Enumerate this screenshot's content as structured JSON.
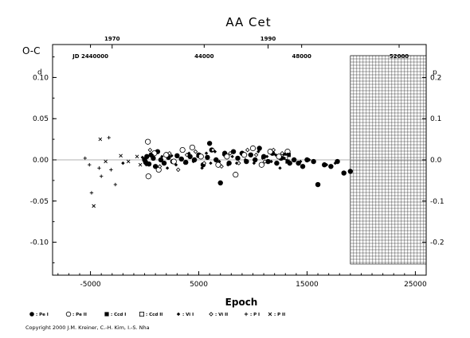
{
  "chart_data": {
    "type": "scatter",
    "title": "AA  Cet",
    "ylabel": "O-C",
    "xlabel": "Epoch",
    "xlim": [
      -8500,
      26000
    ],
    "ylim": [
      -0.14,
      0.14
    ],
    "x_ticks": [
      "-5000",
      "5000",
      "15000",
      "25000"
    ],
    "x_tick_values": [
      -5000,
      5000,
      15000,
      25000
    ],
    "y_ticks_left": [
      "0.10",
      "0.05",
      "0.00",
      "-0.05",
      "-0.10"
    ],
    "y_ticks_left_values": [
      0.1,
      0.05,
      0.0,
      -0.05,
      -0.1
    ],
    "y_ticks_right": [
      "0.2",
      "0.1",
      "0.0",
      "-0.1",
      "-0.2"
    ],
    "y_ticks_right_values": [
      0.2,
      0.1,
      0.0,
      -0.1,
      -0.2
    ],
    "y_right_scale": 0.5,
    "unit_left": "d",
    "unit_right": "p",
    "top_year_ticks": [
      {
        "label": "1970",
        "epoch": -3000
      },
      {
        "label": "1990",
        "epoch": 11400
      }
    ],
    "top_jd_ticks": [
      {
        "label": "JD 2440000",
        "epoch": -5000
      },
      {
        "label": "44000",
        "epoch": 5500
      },
      {
        "label": "48000",
        "epoch": 14500
      },
      {
        "label": "52000",
        "epoch": 23500
      }
    ],
    "grid_region": {
      "x_from": 19000,
      "x_to": 26000
    },
    "zero_line": true,
    "series": [
      {
        "name": ": Pe I",
        "marker": "filled-circle",
        "size": 3.2,
        "points": [
          [
            0,
            0.0
          ],
          [
            100,
            -0.003
          ],
          [
            200,
            0.004
          ],
          [
            400,
            -0.005
          ],
          [
            600,
            0.006
          ],
          [
            800,
            0.002
          ],
          [
            1000,
            -0.008
          ],
          [
            1200,
            0.01
          ],
          [
            1500,
            0.0
          ],
          [
            1800,
            -0.004
          ],
          [
            2200,
            0.003
          ],
          [
            2600,
            -0.002
          ],
          [
            3000,
            0.005
          ],
          [
            3400,
            0.001
          ],
          [
            3800,
            -0.003
          ],
          [
            4200,
            0.004
          ],
          [
            4600,
            0.0
          ],
          [
            5000,
            0.006
          ],
          [
            5400,
            -0.006
          ],
          [
            5800,
            0.003
          ],
          [
            6000,
            0.02
          ],
          [
            6200,
            0.012
          ],
          [
            6600,
            0.0
          ],
          [
            7000,
            -0.028
          ],
          [
            7400,
            0.008
          ],
          [
            7800,
            -0.004
          ],
          [
            8200,
            0.01
          ],
          [
            8600,
            0.002
          ],
          [
            9000,
            0.008
          ],
          [
            9400,
            -0.002
          ],
          [
            9800,
            0.006
          ],
          [
            10200,
            0.0
          ],
          [
            10600,
            0.014
          ],
          [
            11000,
            0.004
          ],
          [
            11400,
            -0.002
          ],
          [
            11800,
            0.008
          ],
          [
            12200,
            -0.004
          ],
          [
            12600,
            0.002
          ],
          [
            13000,
            0.006
          ],
          [
            13400,
            -0.004
          ],
          [
            13800,
            0.0
          ],
          [
            14200,
            -0.004
          ],
          [
            14600,
            -0.008
          ],
          [
            15000,
            0.0
          ],
          [
            15600,
            -0.002
          ],
          [
            16000,
            -0.03
          ],
          [
            16600,
            -0.006
          ],
          [
            17200,
            -0.008
          ],
          [
            17800,
            -0.002
          ],
          [
            18400,
            -0.016
          ],
          [
            19000,
            -0.014
          ]
        ]
      },
      {
        "name": ": Pe II",
        "marker": "open-circle",
        "size": 3.2,
        "points": [
          [
            300,
            0.022
          ],
          [
            350,
            -0.02
          ],
          [
            900,
            0.008
          ],
          [
            1300,
            -0.012
          ],
          [
            2000,
            0.006
          ],
          [
            2700,
            -0.002
          ],
          [
            3500,
            0.012
          ],
          [
            4400,
            0.015
          ],
          [
            5200,
            0.004
          ],
          [
            6800,
            -0.006
          ],
          [
            7600,
            0.004
          ],
          [
            8400,
            -0.018
          ],
          [
            9200,
            0.006
          ],
          [
            10000,
            0.014
          ],
          [
            10800,
            -0.006
          ],
          [
            11600,
            0.01
          ],
          [
            12400,
            0.004
          ],
          [
            13200,
            0.01
          ]
        ]
      },
      {
        "name": ": Ccd I",
        "marker": "filled-square",
        "size": 2.6,
        "points": [
          [
            13200,
            -0.002
          ],
          [
            13300,
            0.006
          ]
        ]
      },
      {
        "name": ": Ccd II",
        "marker": "open-square",
        "size": 2.6,
        "points": [
          [
            13000,
            0.003
          ]
        ]
      },
      {
        "name": ": Vi I",
        "marker": "filled-diamond",
        "size": 2.2,
        "points": [
          [
            -2000,
            -0.004
          ],
          [
            -200,
            0.003
          ],
          [
            150,
            -0.006
          ],
          [
            700,
            0.006
          ],
          [
            1100,
            -0.008
          ],
          [
            1600,
            0.004
          ],
          [
            2100,
            -0.01
          ],
          [
            2500,
            0.005
          ],
          [
            2900,
            -0.006
          ],
          [
            3300,
            0.002
          ],
          [
            3700,
            -0.004
          ],
          [
            4100,
            0.008
          ],
          [
            4500,
            -0.002
          ],
          [
            4900,
            0.004
          ],
          [
            5300,
            -0.01
          ],
          [
            5700,
            0.008
          ],
          [
            6100,
            -0.004
          ],
          [
            6500,
            0.01
          ],
          [
            6900,
            -0.002
          ],
          [
            7300,
            0.006
          ],
          [
            7700,
            -0.006
          ],
          [
            8100,
            0.004
          ],
          [
            8500,
            -0.004
          ],
          [
            8900,
            0.008
          ],
          [
            9300,
            0.0
          ],
          [
            9700,
            0.006
          ],
          [
            10100,
            -0.004
          ],
          [
            10500,
            0.01
          ],
          [
            10900,
            0.002
          ],
          [
            11300,
            0.004
          ],
          [
            11700,
            -0.002
          ],
          [
            12100,
            0.006
          ],
          [
            12500,
            -0.01
          ],
          [
            12900,
            0.002
          ],
          [
            14400,
            -0.002
          ],
          [
            15200,
            0.0
          ],
          [
            16800,
            -0.006
          ],
          [
            17600,
            -0.004
          ]
        ]
      },
      {
        "name": ": Vi II",
        "marker": "open-diamond",
        "size": 2.2,
        "points": [
          [
            500,
            0.012
          ],
          [
            1400,
            -0.008
          ],
          [
            2300,
            0.008
          ],
          [
            3100,
            -0.012
          ],
          [
            3900,
            0.006
          ],
          [
            4700,
            0.01
          ],
          [
            5500,
            -0.004
          ],
          [
            6300,
            0.012
          ],
          [
            7100,
            -0.008
          ],
          [
            7900,
            0.008
          ],
          [
            8700,
            -0.004
          ],
          [
            9500,
            0.012
          ],
          [
            10300,
            0.006
          ],
          [
            11100,
            -0.002
          ],
          [
            11900,
            0.012
          ],
          [
            12700,
            0.008
          ]
        ]
      },
      {
        "name": ": P I",
        "marker": "plus",
        "size": 2.2,
        "points": [
          [
            -5500,
            0.002
          ],
          [
            -5100,
            -0.006
          ],
          [
            -4900,
            -0.04
          ],
          [
            -4200,
            -0.01
          ],
          [
            -4000,
            -0.02
          ],
          [
            -3300,
            0.027
          ],
          [
            -3100,
            -0.012
          ],
          [
            -2700,
            -0.03
          ]
        ]
      },
      {
        "name": ": P II",
        "marker": "x-cross",
        "size": 2.0,
        "points": [
          [
            -4700,
            -0.056
          ],
          [
            -4100,
            0.025
          ],
          [
            -3600,
            -0.002
          ],
          [
            -2200,
            0.005
          ],
          [
            -1500,
            -0.002
          ],
          [
            -700,
            0.004
          ],
          [
            -400,
            -0.006
          ]
        ]
      }
    ],
    "legend_position": "bottom",
    "copyright": "Copyright 2000 J.M. Kreiner, C.-H. Kim, I.-S. Nha"
  }
}
